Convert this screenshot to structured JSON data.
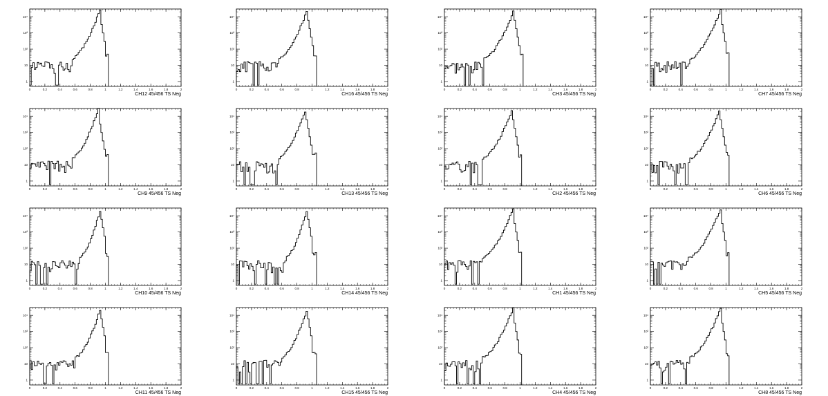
{
  "page": {
    "background": "#ffffff",
    "line_color": "#000000"
  },
  "chart_data": [
    {
      "type": "histogram",
      "xlabel": "CH12 45/456 TS Neg",
      "xlim": [
        0,
        2
      ],
      "ylog": true,
      "peak_x": 0.92,
      "cut_x": 1.02,
      "noise_end": 0.55,
      "seed": 12
    },
    {
      "type": "histogram",
      "xlabel": "CH16 45/456 TS Neg",
      "xlim": [
        0,
        2
      ],
      "ylog": true,
      "peak_x": 0.93,
      "cut_x": 1.04,
      "noise_end": 0.55,
      "seed": 16
    },
    {
      "type": "histogram",
      "xlabel": "CH3 45/456 TS Neg",
      "xlim": [
        0,
        2
      ],
      "ylog": true,
      "peak_x": 0.91,
      "cut_x": 1.02,
      "noise_end": 0.52,
      "seed": 3
    },
    {
      "type": "histogram",
      "xlabel": "CH7 45/456 TS Neg",
      "xlim": [
        0,
        2
      ],
      "ylog": true,
      "peak_x": 0.92,
      "cut_x": 1.02,
      "noise_end": 0.52,
      "seed": 7
    },
    {
      "type": "histogram",
      "xlabel": "CH9 45/456 TS Neg",
      "xlim": [
        0,
        2
      ],
      "ylog": true,
      "peak_x": 0.9,
      "cut_x": 1.02,
      "noise_end": 0.55,
      "seed": 9
    },
    {
      "type": "histogram",
      "xlabel": "CH13 45/456 TS Neg",
      "xlim": [
        0,
        2
      ],
      "ylog": true,
      "peak_x": 0.91,
      "cut_x": 1.03,
      "noise_end": 0.55,
      "seed": 13
    },
    {
      "type": "histogram",
      "xlabel": "CH2 45/456 TS Neg",
      "xlim": [
        0,
        2
      ],
      "ylog": true,
      "peak_x": 0.89,
      "cut_x": 1.0,
      "noise_end": 0.5,
      "seed": 2
    },
    {
      "type": "histogram",
      "xlabel": "CH6 45/456 TS Neg",
      "xlim": [
        0,
        2
      ],
      "ylog": true,
      "peak_x": 0.91,
      "cut_x": 1.02,
      "noise_end": 0.52,
      "seed": 6
    },
    {
      "type": "histogram",
      "xlabel": "CH10 45/456 TS Neg",
      "xlim": [
        0,
        2
      ],
      "ylog": true,
      "peak_x": 0.93,
      "cut_x": 1.02,
      "noise_end": 0.65,
      "seed": 10
    },
    {
      "type": "histogram",
      "xlabel": "CH14 45/456 TS Neg",
      "xlim": [
        0,
        2
      ],
      "ylog": true,
      "peak_x": 0.93,
      "cut_x": 1.03,
      "noise_end": 0.65,
      "seed": 14
    },
    {
      "type": "histogram",
      "xlabel": "CH1 45/456 TS Neg",
      "xlim": [
        0,
        2
      ],
      "ylog": true,
      "peak_x": 0.9,
      "cut_x": 1.0,
      "noise_end": 0.5,
      "seed": 1
    },
    {
      "type": "histogram",
      "xlabel": "CH5 45/456 TS Neg",
      "xlim": [
        0,
        2
      ],
      "ylog": true,
      "peak_x": 0.92,
      "cut_x": 1.02,
      "noise_end": 0.5,
      "seed": 5
    },
    {
      "type": "histogram",
      "xlabel": "CH11 45/456 TS Neg",
      "xlim": [
        0,
        2
      ],
      "ylog": true,
      "peak_x": 0.93,
      "cut_x": 1.02,
      "noise_end": 0.6,
      "seed": 11
    },
    {
      "type": "histogram",
      "xlabel": "CH15 45/456 TS Neg",
      "xlim": [
        0,
        2
      ],
      "ylog": true,
      "peak_x": 0.93,
      "cut_x": 1.03,
      "noise_end": 0.6,
      "seed": 15
    },
    {
      "type": "histogram",
      "xlabel": "CH4 45/456 TS Neg",
      "xlim": [
        0,
        2
      ],
      "ylog": true,
      "peak_x": 0.9,
      "cut_x": 1.0,
      "noise_end": 0.5,
      "seed": 4
    },
    {
      "type": "histogram",
      "xlabel": "CH8 45/456 TS Neg",
      "xlim": [
        0,
        2
      ],
      "ylog": true,
      "peak_x": 0.92,
      "cut_x": 1.02,
      "noise_end": 0.52,
      "seed": 8
    }
  ],
  "x_tick_labels": [
    "0",
    "0.2",
    "0.4",
    "0.6",
    "0.8",
    "1",
    "1.2",
    "1.4",
    "1.6",
    "1.8",
    "2"
  ],
  "y_tick_labels": [
    "1",
    "10",
    "10²",
    "10³",
    "10⁴"
  ]
}
